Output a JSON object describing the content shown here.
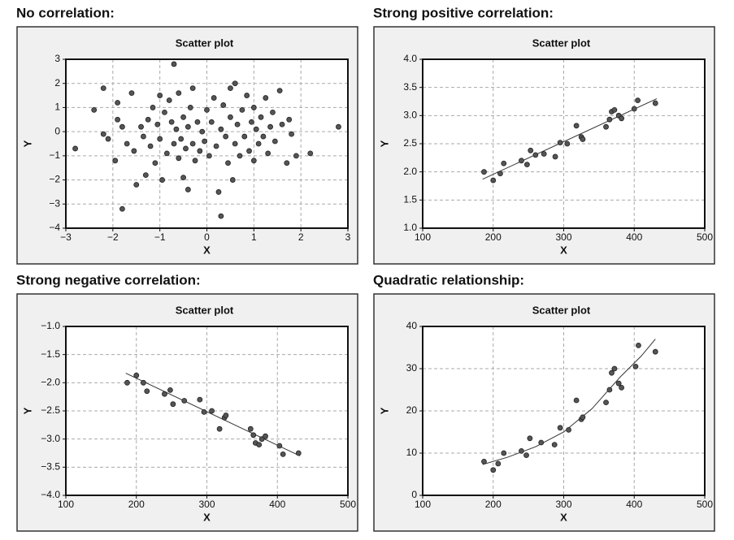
{
  "chart_data": [
    {
      "type": "scatter",
      "heading": "No correlation:",
      "title": "Scatter plot",
      "x_label": "X",
      "y_label": "Y",
      "color": "#555555",
      "grid": true,
      "x": [
        -2.8,
        -2.4,
        -2.2,
        -2.2,
        -2.1,
        -1.95,
        -1.9,
        -1.9,
        -1.8,
        -1.8,
        -1.7,
        -1.6,
        -1.55,
        -1.5,
        -1.4,
        -1.35,
        -1.3,
        -1.25,
        -1.2,
        -1.15,
        -1.1,
        -1.05,
        -1.0,
        -1.0,
        -0.95,
        -0.9,
        -0.85,
        -0.8,
        -0.75,
        -0.7,
        -0.7,
        -0.65,
        -0.6,
        -0.6,
        -0.55,
        -0.5,
        -0.5,
        -0.45,
        -0.4,
        -0.4,
        -0.35,
        -0.3,
        -0.3,
        -0.25,
        -0.2,
        -0.15,
        -0.1,
        -0.05,
        0.0,
        0.05,
        0.1,
        0.15,
        0.2,
        0.25,
        0.3,
        0.3,
        0.35,
        0.4,
        0.45,
        0.5,
        0.5,
        0.55,
        0.6,
        0.6,
        0.65,
        0.7,
        0.75,
        0.8,
        0.85,
        0.9,
        0.95,
        1.0,
        1.0,
        1.05,
        1.1,
        1.15,
        1.2,
        1.25,
        1.3,
        1.35,
        1.4,
        1.45,
        1.55,
        1.6,
        1.7,
        1.75,
        1.8,
        1.9,
        2.2,
        2.8
      ],
      "y": [
        -0.7,
        0.9,
        1.8,
        -0.1,
        -0.3,
        -1.2,
        0.5,
        1.2,
        -3.2,
        0.2,
        -0.5,
        1.6,
        -0.8,
        -2.2,
        0.2,
        -0.2,
        -1.8,
        0.5,
        -0.6,
        1.0,
        -1.3,
        0.3,
        -0.3,
        1.5,
        -2.0,
        0.8,
        -0.9,
        1.3,
        0.4,
        -0.5,
        2.8,
        0.1,
        -1.1,
        1.6,
        -0.3,
        0.6,
        -1.9,
        -0.7,
        0.2,
        -2.4,
        1.0,
        -0.5,
        1.8,
        -1.2,
        0.4,
        -0.8,
        0.0,
        -0.4,
        0.9,
        -1.0,
        0.4,
        1.4,
        -0.6,
        -2.5,
        0.1,
        -3.5,
        1.1,
        -0.2,
        -1.3,
        0.6,
        1.8,
        -2.0,
        -0.5,
        2.0,
        0.3,
        -1.0,
        0.9,
        -0.2,
        1.5,
        -0.8,
        0.4,
        -1.2,
        1.0,
        0.1,
        -0.5,
        0.6,
        -0.2,
        1.4,
        -0.9,
        0.2,
        0.8,
        -0.4,
        1.7,
        0.3,
        -1.3,
        0.5,
        -0.1,
        -1.0,
        -0.9,
        0.2
      ],
      "xlim": [
        -3,
        3
      ],
      "ylim": [
        -4,
        3
      ],
      "xticks": [
        {
          "value": -3,
          "label": "−3"
        },
        {
          "value": -2,
          "label": "−2"
        },
        {
          "value": -1,
          "label": "−1"
        },
        0,
        1,
        2,
        3
      ],
      "yticks": [
        {
          "value": -4,
          "label": "−4"
        },
        {
          "value": -3,
          "label": "−3"
        },
        {
          "value": -2,
          "label": "−2"
        },
        {
          "value": -1,
          "label": "−1"
        },
        0,
        1,
        2,
        3
      ]
    },
    {
      "type": "scatter",
      "heading": "Strong positive correlation:",
      "title": "Scatter plot",
      "x_label": "X",
      "y_label": "Y",
      "color": "#555555",
      "grid": true,
      "x": [
        187,
        200,
        210,
        215,
        240,
        248,
        253,
        260,
        272,
        288,
        295,
        305,
        318,
        325,
        327,
        360,
        365,
        368,
        372,
        378,
        382,
        400,
        405,
        430
      ],
      "y": [
        2.0,
        1.85,
        1.97,
        2.15,
        2.2,
        2.13,
        2.38,
        2.3,
        2.32,
        2.27,
        2.52,
        2.5,
        2.82,
        2.62,
        2.58,
        2.8,
        2.93,
        3.07,
        3.1,
        3.0,
        2.95,
        3.12,
        3.27,
        3.22
      ],
      "fit": {
        "x": [
          185,
          432
        ],
        "y": [
          1.87,
          3.3
        ]
      },
      "xlim": [
        100,
        500
      ],
      "ylim": [
        1,
        4
      ],
      "xticks": [
        100,
        200,
        300,
        400,
        500
      ],
      "yticks": [
        {
          "value": 1,
          "label": "1.0"
        },
        1.5,
        {
          "value": 2,
          "label": "2.0"
        },
        2.5,
        {
          "value": 3,
          "label": "3.0"
        },
        3.5,
        {
          "value": 4,
          "label": "4.0"
        }
      ]
    },
    {
      "type": "scatter",
      "heading": "Strong negative correlation:",
      "title": "Scatter plot",
      "x_label": "X",
      "y_label": "Y",
      "color": "#555555",
      "grid": true,
      "x": [
        187,
        200,
        210,
        215,
        240,
        248,
        252,
        268,
        290,
        296,
        307,
        318,
        325,
        327,
        362,
        366,
        369,
        374,
        378,
        383,
        403,
        408,
        430
      ],
      "y": [
        -2.0,
        -1.87,
        -2.0,
        -2.15,
        -2.2,
        -2.13,
        -2.38,
        -2.32,
        -2.3,
        -2.52,
        -2.5,
        -2.82,
        -2.62,
        -2.58,
        -2.82,
        -2.93,
        -3.07,
        -3.1,
        -3.0,
        -2.95,
        -3.12,
        -3.27,
        -3.25
      ],
      "fit": {
        "x": [
          185,
          432
        ],
        "y": [
          -1.83,
          -3.3
        ]
      },
      "xlim": [
        100,
        500
      ],
      "ylim": [
        -4,
        -1
      ],
      "xticks": [
        100,
        200,
        300,
        400,
        500
      ],
      "yticks": [
        {
          "value": -4,
          "label": "−4.0"
        },
        {
          "value": -3.5,
          "label": "−3.5"
        },
        {
          "value": -3,
          "label": "−3.0"
        },
        {
          "value": -2.5,
          "label": "−2.5"
        },
        {
          "value": -2,
          "label": "−2.0"
        },
        {
          "value": -1.5,
          "label": "−1.5"
        },
        {
          "value": -1,
          "label": "−1.0"
        }
      ]
    },
    {
      "type": "scatter",
      "heading": "Quadratic relationship:",
      "title": "Scatter plot",
      "x_label": "X",
      "y_label": "Y",
      "color": "#555555",
      "grid": true,
      "x": [
        187,
        200,
        207,
        215,
        240,
        247,
        252,
        268,
        287,
        295,
        307,
        318,
        325,
        327,
        360,
        365,
        368,
        372,
        378,
        382,
        402,
        406,
        430
      ],
      "y": [
        8,
        6,
        7.5,
        10,
        10.5,
        9.5,
        13.5,
        12.5,
        12,
        16,
        15.5,
        22.5,
        18,
        18.5,
        22,
        25,
        29,
        30,
        26.5,
        25.5,
        30.5,
        35.5,
        34
      ],
      "fit": {
        "x": [
          185,
          220,
          260,
          300,
          340,
          380,
          410,
          430
        ],
        "y": [
          7.3,
          9,
          11.5,
          15,
          20.5,
          28,
          33,
          37
        ]
      },
      "xlim": [
        100,
        500
      ],
      "ylim": [
        0,
        40
      ],
      "xticks": [
        100,
        200,
        300,
        400,
        500
      ],
      "yticks": [
        0,
        10,
        20,
        30,
        40
      ]
    }
  ]
}
